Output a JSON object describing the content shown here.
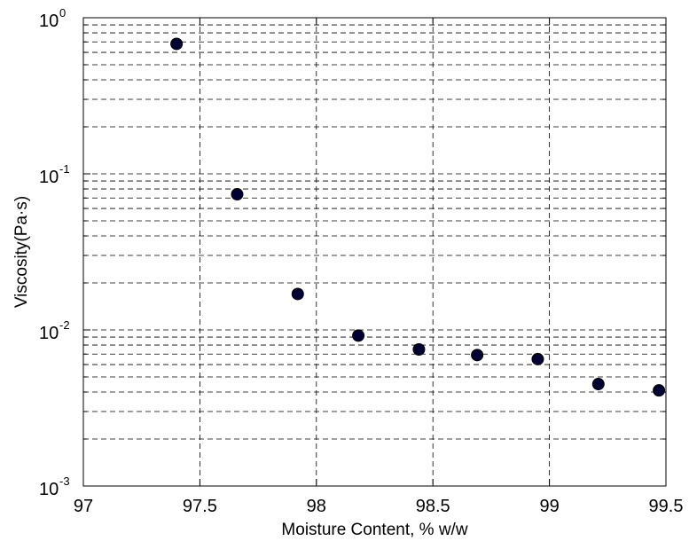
{
  "chart_data": {
    "type": "scatter",
    "title": "",
    "xlabel": "Moisture Content, % w/w",
    "ylabel": "Viscosity(Pa·s)",
    "xlim": [
      97,
      99.5
    ],
    "ylim": [
      0.001,
      1
    ],
    "yscale": "log",
    "grid": true,
    "grid_style": "dashed",
    "marker_color": "#000033",
    "marker_edge_color": "#000000",
    "x_ticks": [
      {
        "value": 97,
        "label": "97"
      },
      {
        "value": 97.5,
        "label": "97.5"
      },
      {
        "value": 98,
        "label": "98"
      },
      {
        "value": 98.5,
        "label": "98.5"
      },
      {
        "value": 99,
        "label": "99"
      },
      {
        "value": 99.5,
        "label": "99.5"
      }
    ],
    "y_ticks": [
      {
        "value": 0.001,
        "base": "10",
        "exponent": "-3"
      },
      {
        "value": 0.01,
        "base": "10",
        "exponent": "-2"
      },
      {
        "value": 0.1,
        "base": "10",
        "exponent": "-1"
      },
      {
        "value": 1,
        "base": "10",
        "exponent": "0"
      }
    ],
    "series": [
      {
        "x": [
          97.4,
          97.66,
          97.92,
          98.18,
          98.44,
          98.69,
          98.95,
          99.21,
          99.47
        ],
        "y": [
          0.68,
          0.074,
          0.017,
          0.0092,
          0.0075,
          0.0069,
          0.0065,
          0.0045,
          0.0041
        ]
      }
    ]
  }
}
